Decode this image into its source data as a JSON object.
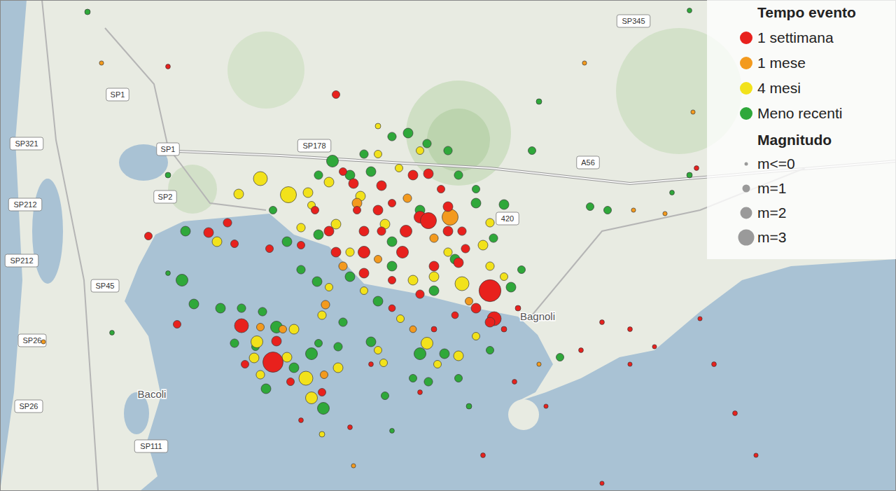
{
  "chart_data": {
    "type": "scatter",
    "xlim": [
      0,
      128
    ],
    "ylim": [
      0,
      70.1
    ],
    "tick_labels": false,
    "legend": "top-right",
    "legend_title": "Tempo evento",
    "size_legend_title": "Magnitudo",
    "size_legend": [
      {
        "value": 0,
        "label": "m<=0"
      },
      {
        "value": 1,
        "label": "m=1"
      },
      {
        "value": 2,
        "label": "m=2"
      },
      {
        "value": 3,
        "label": "m=3"
      }
    ],
    "series": [
      {
        "name": "1 settimana",
        "color": "#e8211d",
        "x": [
          60,
          64,
          56,
          52,
          70,
          39,
          34.5,
          70.6,
          61.2,
          49,
          50.5,
          54,
          57.5,
          62,
          65.5,
          68,
          60,
          56,
          47,
          45,
          52,
          59,
          61.2,
          63,
          66,
          54.5,
          58,
          51,
          48,
          43,
          21.2,
          29.8,
          33.5,
          32.5,
          38.5,
          25.3,
          48,
          41.5,
          35,
          39.5,
          46,
          52,
          54.5,
          64,
          66.5,
          70,
          72,
          74,
          65,
          62,
          56,
          53,
          60,
          50,
          43,
          73.5,
          78,
          90,
          102,
          108,
          86,
          69,
          105,
          90,
          93.5,
          100,
          86,
          83,
          24,
          99.5
        ],
        "y": [
          39.1,
          37.1,
          41.1,
          34.1,
          28.6,
          18.4,
          23.6,
          24.6,
          38.6,
          45.6,
          43.9,
          40.1,
          34.1,
          32.1,
          32.6,
          26.1,
          28.1,
          30.1,
          37.1,
          40.1,
          37.1,
          45.1,
          45.3,
          43.1,
          37.1,
          43.6,
          37.1,
          40.1,
          34.1,
          35.1,
          36.4,
          36.9,
          35.3,
          38.3,
          34.6,
          23.8,
          56.6,
          15.6,
          18.1,
          21.4,
          14.1,
          31.1,
          37.1,
          40.6,
          34.6,
          24.1,
          23.1,
          26.1,
          25.1,
          23.1,
          26.1,
          18.1,
          14.1,
          9.1,
          10.1,
          15.6,
          12.1,
          23.1,
          18.1,
          5.1,
          1.1,
          5.1,
          11.1,
          18.1,
          20.6,
          24.6,
          24.1,
          20.1,
          60.6,
          46.1
        ],
        "magnitude": [
          2,
          1.5,
          1,
          2,
          4.4,
          4,
          2.5,
          2.5,
          3,
          1,
          1.5,
          1.5,
          2,
          1.5,
          1.5,
          1.5,
          1.2,
          1,
          1.5,
          1,
          1.5,
          1.5,
          1.5,
          1,
          1.2,
          1.5,
          2,
          1,
          1.5,
          1,
          1,
          1.5,
          1,
          1.2,
          1,
          1,
          1,
          1,
          1,
          1.5,
          1,
          1.5,
          1.2,
          1.5,
          1.2,
          1.5,
          0.5,
          0.5,
          0.8,
          0.5,
          0.8,
          0.3,
          0.3,
          0.3,
          0.3,
          0.3,
          0.2,
          0.3,
          0.3,
          0.2,
          0.2,
          0.3,
          0.3,
          0.2,
          0.2,
          0.2,
          0.3,
          0.3,
          0.3,
          0.3
        ]
      },
      {
        "name": "1 mese",
        "color": "#f39a1e",
        "x": [
          64.3,
          51,
          58.2,
          62,
          49,
          46.5,
          37.2,
          40.4,
          46.3,
          54,
          67,
          59,
          14.5,
          99,
          90.5,
          6.2,
          50.5,
          77,
          95,
          83.5
        ],
        "y": [
          39.1,
          41.1,
          41.8,
          36.1,
          32.1,
          26.6,
          23.4,
          23.1,
          16.6,
          33.1,
          27.1,
          23.1,
          61.1,
          54.1,
          40.1,
          21.3,
          3.6,
          18.1,
          39.6,
          61.1
        ],
        "magnitude": [
          3,
          1.5,
          1.2,
          1.2,
          1.2,
          1.2,
          1,
          1,
          1,
          1,
          1,
          0.8,
          0.2,
          0.2,
          0.2,
          0.2,
          0.2,
          0.2,
          0.2,
          0.2
        ]
      },
      {
        "name": "4 mesi",
        "color": "#f2e21b",
        "x": [
          41.2,
          37.2,
          34.1,
          44,
          47,
          51.5,
          55,
          48,
          43,
          59,
          62,
          66,
          70,
          57,
          60,
          54,
          61,
          65.5,
          43.7,
          36.7,
          44.5,
          36.3,
          37.2,
          41,
          54,
          54.8,
          62.5,
          31,
          44.5,
          50,
          64,
          69,
          52,
          47,
          72,
          68,
          46,
          57.2,
          70,
          48.3,
          42,
          46,
          54
        ],
        "y": [
          42.3,
          44.6,
          42.4,
          42.6,
          44.1,
          42.1,
          38.1,
          38.1,
          37.6,
          30.1,
          30.6,
          29.6,
          32.1,
          46.1,
          48.6,
          48.1,
          21.1,
          19.3,
          16.1,
          21.3,
          13.3,
          19,
          16.6,
          19.1,
          20.1,
          18.3,
          18.1,
          35.6,
          40.8,
          34.1,
          34.1,
          35.1,
          28.6,
          29.1,
          30.6,
          22.1,
          25.1,
          24.6,
          38.3,
          17.6,
          23.1,
          8.1,
          52.1
        ],
        "magnitude": [
          3,
          2.5,
          1.5,
          1.5,
          1.5,
          1.5,
          1.5,
          1.5,
          1.2,
          1.5,
          1.5,
          2.5,
          1.2,
          1,
          1,
          1,
          2,
          1.5,
          2.5,
          2,
          2,
          1.5,
          1.2,
          1.5,
          1,
          1,
          1,
          1.5,
          1,
          1.2,
          1.2,
          1.5,
          1,
          1,
          1,
          1,
          1.2,
          1,
          1.2,
          1.5,
          1.5,
          0.5,
          0.5
        ]
      },
      {
        "name": "Meno recenti",
        "color": "#2fa83a",
        "x": [
          47.5,
          58.3,
          61,
          64,
          56,
          52,
          72,
          70.5,
          26.5,
          26,
          27.7,
          31.5,
          34.5,
          37.5,
          39.5,
          38,
          46.2,
          42,
          44.5,
          45.5,
          48.3,
          53,
          60,
          63.5,
          61.2,
          62,
          56,
          50,
          45.3,
          43,
          41,
          39,
          45.5,
          50,
          53,
          65.5,
          68,
          73,
          74.5,
          70,
          80,
          84.3,
          86.8,
          76,
          77,
          98.5,
          98.5,
          12.5,
          24,
          60,
          56,
          65,
          54,
          45.5,
          36.5,
          33.5,
          55,
          49,
          65.5,
          67,
          24,
          16,
          96,
          56,
          59,
          68
        ],
        "y": [
          47.1,
          51.1,
          49.6,
          48.6,
          50.6,
          48.1,
          40.9,
          36.1,
          37.1,
          30.1,
          26.7,
          26.1,
          26.1,
          25.6,
          23.4,
          14.6,
          11.8,
          17.6,
          19.6,
          21.1,
          20.6,
          21.3,
          19.6,
          19.6,
          15.6,
          28.6,
          32.1,
          30.6,
          29.9,
          31.6,
          35.6,
          40.1,
          45.1,
          45.1,
          45.6,
          45.1,
          41.1,
          29.1,
          31.6,
          20.1,
          19.1,
          40.6,
          40.1,
          48.6,
          55.6,
          45.1,
          68.6,
          68.4,
          45.1,
          40.1,
          35.6,
          33.1,
          27.1,
          36.6,
          20.6,
          21.1,
          13.6,
          24.1,
          16.1,
          12.1,
          31.1,
          22.6,
          42.6,
          8.6,
          16.1,
          43.1
        ],
        "magnitude": [
          2,
          1.5,
          1.2,
          1.2,
          1.2,
          1.2,
          1.5,
          1.2,
          1.5,
          2,
          1.5,
          1.5,
          1.2,
          1.2,
          2,
          1.5,
          2,
          1.5,
          2,
          1,
          1.2,
          1.5,
          2,
          1.5,
          1.2,
          1.5,
          1.5,
          1.5,
          1.5,
          1.2,
          1.5,
          1,
          1.2,
          1.5,
          1.5,
          1.2,
          1.5,
          1.5,
          1,
          1,
          1,
          1,
          1,
          1,
          0.5,
          0.5,
          0.3,
          0.5,
          0.5,
          1.5,
          1.5,
          1.5,
          1.5,
          1.5,
          1,
          1.2,
          1,
          1.2,
          1,
          0.5,
          0.3,
          0.3,
          0.3,
          0.3,
          1,
          1
        ]
      }
    ],
    "road_labels": [
      {
        "text": "SP345",
        "x": 90.5,
        "y": 67.1
      },
      {
        "text": "SP1",
        "x": 16.8,
        "y": 56.6
      },
      {
        "text": "SP1",
        "x": 24,
        "y": 48.8
      },
      {
        "text": "SP321",
        "x": 3.8,
        "y": 49.6
      },
      {
        "text": "SP178",
        "x": 44.9,
        "y": 49.3
      },
      {
        "text": "SP212",
        "x": 3.6,
        "y": 40.9
      },
      {
        "text": "SP212",
        "x": 3.1,
        "y": 32.9
      },
      {
        "text": "SP2",
        "x": 23.6,
        "y": 42
      },
      {
        "text": "SP45",
        "x": 15,
        "y": 29.3
      },
      {
        "text": "SP26",
        "x": 4.6,
        "y": 21.5
      },
      {
        "text": "SP26",
        "x": 4.1,
        "y": 12.1
      },
      {
        "text": "SP111",
        "x": 21.6,
        "y": 6.4
      },
      {
        "text": "A56",
        "x": 84,
        "y": 46.9
      },
      {
        "text": "420",
        "x": 72.5,
        "y": 38.9
      }
    ],
    "place_labels": [
      {
        "text": "Bacoli",
        "x": 21.7,
        "y": 13.8
      },
      {
        "text": "Bagnoli",
        "x": 76.8,
        "y": 24.9
      }
    ]
  }
}
